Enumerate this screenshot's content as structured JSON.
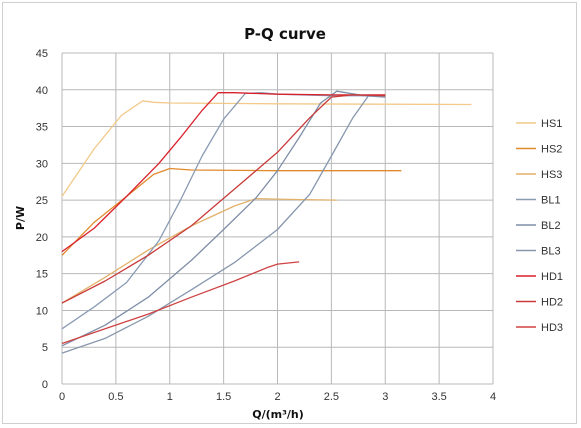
{
  "chart_data": {
    "type": "line",
    "title": "P-Q  curve",
    "xlabel": "Q/(m³/h)",
    "ylabel": "P/W",
    "xlim": [
      0,
      4
    ],
    "ylim": [
      0,
      45
    ],
    "x_ticks": [
      "0",
      "0.5",
      "1",
      "1.5",
      "2",
      "2.5",
      "3",
      "3.5",
      "4"
    ],
    "y_ticks": [
      "0",
      "5",
      "10",
      "15",
      "20",
      "25",
      "30",
      "35",
      "40",
      "45"
    ],
    "grid": true,
    "legend_position": "right",
    "series": [
      {
        "name": "HS1",
        "color": "#f2c98a",
        "points": [
          [
            0,
            25.5
          ],
          [
            0.3,
            32
          ],
          [
            0.55,
            36.5
          ],
          [
            0.75,
            38.5
          ],
          [
            0.85,
            38.3
          ],
          [
            1.0,
            38.2
          ],
          [
            2.0,
            38.1
          ],
          [
            3.8,
            38.0
          ]
        ]
      },
      {
        "name": "HS2",
        "color": "#e08a2e",
        "points": [
          [
            0,
            17.5
          ],
          [
            0.3,
            22
          ],
          [
            0.6,
            25.5
          ],
          [
            0.85,
            28.5
          ],
          [
            1.0,
            29.3
          ],
          [
            1.2,
            29.1
          ],
          [
            2.0,
            29.0
          ],
          [
            3.15,
            29.0
          ]
        ]
      },
      {
        "name": "HS3",
        "color": "#e2b16a",
        "points": [
          [
            0,
            11
          ],
          [
            0.4,
            14.5
          ],
          [
            0.8,
            18.2
          ],
          [
            1.2,
            21.5
          ],
          [
            1.6,
            24.2
          ],
          [
            1.8,
            25.2
          ],
          [
            2.1,
            25.1
          ],
          [
            2.55,
            25.0
          ]
        ]
      },
      {
        "name": "BL1",
        "color": "#8a9bb3",
        "points": [
          [
            0,
            7.5
          ],
          [
            0.3,
            10.5
          ],
          [
            0.6,
            13.8
          ],
          [
            0.9,
            19.5
          ],
          [
            1.1,
            25
          ],
          [
            1.3,
            31
          ],
          [
            1.5,
            36
          ],
          [
            1.7,
            39.5
          ],
          [
            1.85,
            39.6
          ],
          [
            2.0,
            39.4
          ],
          [
            2.5,
            39.2
          ],
          [
            3.0,
            39.2
          ]
        ]
      },
      {
        "name": "BL2",
        "color": "#7e8ea7",
        "points": [
          [
            0,
            5.2
          ],
          [
            0.4,
            8.0
          ],
          [
            0.8,
            11.8
          ],
          [
            1.2,
            16.8
          ],
          [
            1.5,
            21.0
          ],
          [
            1.8,
            25.3
          ],
          [
            2.0,
            29.0
          ],
          [
            2.2,
            33.5
          ],
          [
            2.4,
            38.2
          ],
          [
            2.55,
            39.8
          ],
          [
            2.8,
            39.2
          ],
          [
            3.0,
            39.0
          ]
        ]
      },
      {
        "name": "BL3",
        "color": "#8797ad",
        "points": [
          [
            0,
            4.2
          ],
          [
            0.4,
            6.2
          ],
          [
            0.8,
            9.2
          ],
          [
            1.2,
            12.8
          ],
          [
            1.6,
            16.5
          ],
          [
            2.0,
            21.0
          ],
          [
            2.3,
            25.8
          ],
          [
            2.5,
            31.0
          ],
          [
            2.7,
            36.2
          ],
          [
            2.85,
            39.3
          ],
          [
            3.0,
            39.1
          ]
        ]
      },
      {
        "name": "HD1",
        "color": "#d9212c",
        "points": [
          [
            0,
            18.0
          ],
          [
            0.3,
            21.2
          ],
          [
            0.6,
            25.5
          ],
          [
            0.9,
            30.0
          ],
          [
            1.1,
            33.5
          ],
          [
            1.3,
            37.2
          ],
          [
            1.45,
            39.6
          ],
          [
            1.6,
            39.6
          ],
          [
            2.0,
            39.4
          ],
          [
            2.5,
            39.3
          ],
          [
            3.0,
            39.3
          ]
        ]
      },
      {
        "name": "HD2",
        "color": "#c93a3a",
        "points": [
          [
            0,
            11.0
          ],
          [
            0.4,
            14.0
          ],
          [
            0.8,
            17.5
          ],
          [
            1.2,
            21.5
          ],
          [
            1.6,
            26.5
          ],
          [
            2.0,
            31.5
          ],
          [
            2.3,
            36.2
          ],
          [
            2.5,
            39.0
          ],
          [
            2.7,
            39.3
          ],
          [
            3.0,
            39.2
          ]
        ]
      },
      {
        "name": "HD3",
        "color": "#cf4242",
        "points": [
          [
            0,
            5.5
          ],
          [
            0.4,
            7.5
          ],
          [
            0.8,
            9.5
          ],
          [
            1.2,
            11.8
          ],
          [
            1.6,
            14.0
          ],
          [
            1.9,
            15.8
          ],
          [
            2.0,
            16.3
          ],
          [
            2.2,
            16.6
          ]
        ]
      }
    ]
  }
}
